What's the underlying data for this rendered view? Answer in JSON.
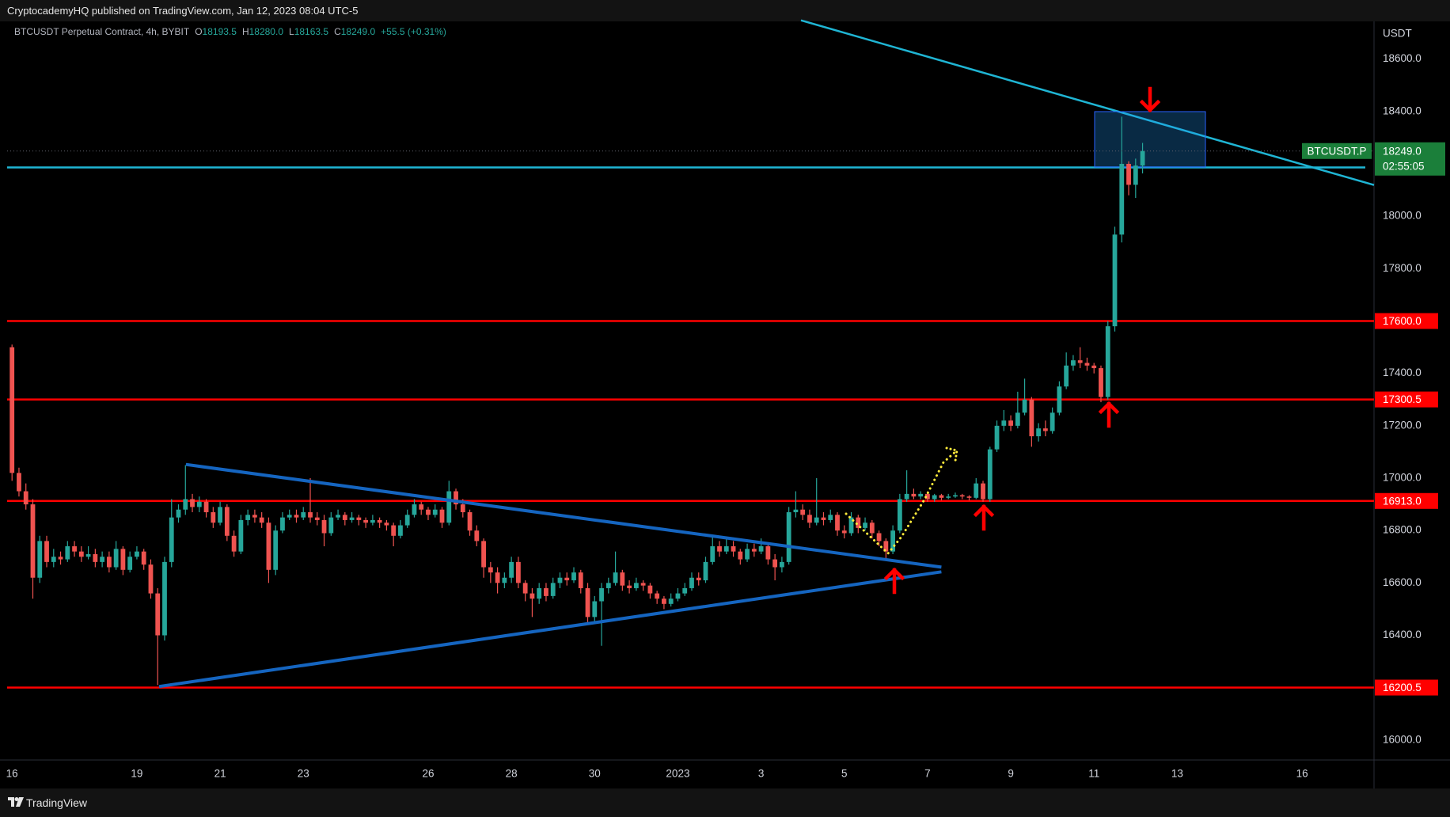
{
  "header": {
    "publisher": "CryptocademyHQ published on TradingView.com, Jan 12, 2023 08:04 UTC-5"
  },
  "chart_data": {
    "type": "candlestick",
    "symbol_title": "BTCUSDT Perpetual Contract, 4h, BYBIT",
    "ohlc_legend": [
      {
        "key": "O",
        "value": "18193.5"
      },
      {
        "key": "H",
        "value": "18280.0"
      },
      {
        "key": "L",
        "value": "18163.5"
      },
      {
        "key": "C",
        "value": "18249.0"
      }
    ],
    "change": "+55.5 (+0.31%)",
    "y_axis_label": "USDT",
    "categories": [
      "16",
      null,
      null,
      null,
      null,
      null,
      null,
      null,
      null,
      null,
      null,
      null,
      null,
      null,
      null,
      null,
      null,
      null,
      "19",
      null,
      null,
      null,
      null,
      null,
      null,
      null,
      null,
      null,
      null,
      null,
      "21",
      null,
      null,
      null,
      null,
      null,
      null,
      null,
      null,
      null,
      null,
      null,
      "23",
      null,
      null,
      null,
      null,
      null,
      null,
      null,
      null,
      null,
      null,
      null,
      null,
      null,
      null,
      null,
      null,
      null,
      "26",
      null,
      null,
      null,
      null,
      null,
      null,
      null,
      null,
      null,
      null,
      null,
      "28",
      null,
      null,
      null,
      null,
      null,
      null,
      null,
      null,
      null,
      null,
      null,
      "30",
      null,
      null,
      null,
      null,
      null,
      null,
      null,
      null,
      null,
      null,
      null,
      "2023",
      null,
      null,
      null,
      null,
      null,
      null,
      null,
      null,
      null,
      null,
      null,
      "3",
      null,
      null,
      null,
      null,
      null,
      null,
      null,
      null,
      null,
      null,
      null,
      "5",
      null,
      null,
      null,
      null,
      null,
      null,
      null,
      null,
      null,
      null,
      null,
      "7",
      null,
      null,
      null,
      null,
      null,
      null,
      null,
      null,
      null,
      null,
      null,
      "9",
      null,
      null,
      null,
      null,
      null,
      null,
      null,
      null,
      null,
      null,
      null,
      "11",
      null,
      null,
      null,
      null,
      null,
      null,
      null,
      null,
      null,
      null,
      null,
      "13",
      null,
      null,
      null,
      null,
      null,
      null,
      null,
      null,
      null,
      null,
      null,
      null,
      null,
      null,
      null,
      null,
      null,
      "16"
    ],
    "values": [
      [
        17500,
        17510,
        16990,
        17020
      ],
      [
        17020,
        17040,
        16930,
        16950
      ],
      [
        16950,
        16980,
        16880,
        16900
      ],
      [
        16900,
        16920,
        16540,
        16620
      ],
      [
        16620,
        16780,
        16600,
        16760
      ],
      [
        16760,
        16780,
        16660,
        16680
      ],
      [
        16680,
        16730,
        16660,
        16700
      ],
      [
        16700,
        16720,
        16670,
        16690
      ],
      [
        16690,
        16760,
        16680,
        16740
      ],
      [
        16740,
        16760,
        16700,
        16720
      ],
      [
        16720,
        16740,
        16680,
        16700
      ],
      [
        16700,
        16740,
        16690,
        16710
      ],
      [
        16710,
        16730,
        16660,
        16680
      ],
      [
        16680,
        16720,
        16660,
        16700
      ],
      [
        16700,
        16720,
        16640,
        16660
      ],
      [
        16660,
        16760,
        16650,
        16730
      ],
      [
        16730,
        16740,
        16630,
        16650
      ],
      [
        16650,
        16720,
        16640,
        16700
      ],
      [
        16700,
        16740,
        16690,
        16720
      ],
      [
        16720,
        16730,
        16650,
        16670
      ],
      [
        16670,
        16690,
        16540,
        16560
      ],
      [
        16560,
        16580,
        16210,
        16400
      ],
      [
        16400,
        16700,
        16380,
        16680
      ],
      [
        16680,
        16920,
        16660,
        16850
      ],
      [
        16850,
        16900,
        16830,
        16880
      ],
      [
        16880,
        17050,
        16860,
        16920
      ],
      [
        16920,
        16940,
        16870,
        16890
      ],
      [
        16890,
        16930,
        16870,
        16910
      ],
      [
        16910,
        16920,
        16850,
        16870
      ],
      [
        16870,
        16890,
        16810,
        16830
      ],
      [
        16830,
        16910,
        16820,
        16890
      ],
      [
        16890,
        16900,
        16760,
        16780
      ],
      [
        16780,
        16800,
        16700,
        16720
      ],
      [
        16720,
        16860,
        16710,
        16840
      ],
      [
        16840,
        16880,
        16820,
        16860
      ],
      [
        16860,
        16880,
        16830,
        16850
      ],
      [
        16850,
        16870,
        16810,
        16830
      ],
      [
        16830,
        16850,
        16600,
        16650
      ],
      [
        16650,
        16820,
        16630,
        16800
      ],
      [
        16800,
        16870,
        16790,
        16850
      ],
      [
        16850,
        16880,
        16840,
        16860
      ],
      [
        16860,
        16880,
        16830,
        16850
      ],
      [
        16850,
        16890,
        16840,
        16870
      ],
      [
        16870,
        17000,
        16830,
        16850
      ],
      [
        16850,
        16870,
        16820,
        16840
      ],
      [
        16840,
        16860,
        16740,
        16790
      ],
      [
        16790,
        16870,
        16780,
        16850
      ],
      [
        16850,
        16880,
        16840,
        16860
      ],
      [
        16860,
        16870,
        16820,
        16840
      ],
      [
        16840,
        16870,
        16830,
        16850
      ],
      [
        16850,
        16860,
        16820,
        16840
      ],
      [
        16840,
        16850,
        16810,
        16830
      ],
      [
        16830,
        16860,
        16820,
        16840
      ],
      [
        16840,
        16850,
        16810,
        16830
      ],
      [
        16830,
        16840,
        16800,
        16820
      ],
      [
        16820,
        16830,
        16740,
        16780
      ],
      [
        16780,
        16840,
        16770,
        16820
      ],
      [
        16820,
        16880,
        16810,
        16860
      ],
      [
        16860,
        16920,
        16850,
        16900
      ],
      [
        16900,
        16910,
        16860,
        16880
      ],
      [
        16880,
        16890,
        16840,
        16860
      ],
      [
        16860,
        16900,
        16850,
        16880
      ],
      [
        16880,
        16890,
        16810,
        16830
      ],
      [
        16830,
        16990,
        16820,
        16950
      ],
      [
        16950,
        16960,
        16880,
        16900
      ],
      [
        16900,
        16920,
        16850,
        16870
      ],
      [
        16870,
        16880,
        16780,
        16800
      ],
      [
        16800,
        16820,
        16740,
        16760
      ],
      [
        16760,
        16770,
        16620,
        16660
      ],
      [
        16660,
        16680,
        16600,
        16640
      ],
      [
        16640,
        16660,
        16560,
        16600
      ],
      [
        16600,
        16640,
        16580,
        16620
      ],
      [
        16620,
        16700,
        16600,
        16680
      ],
      [
        16680,
        16700,
        16580,
        16600
      ],
      [
        16600,
        16610,
        16530,
        16560
      ],
      [
        16560,
        16580,
        16470,
        16540
      ],
      [
        16540,
        16600,
        16520,
        16580
      ],
      [
        16580,
        16600,
        16530,
        16550
      ],
      [
        16550,
        16620,
        16540,
        16600
      ],
      [
        16600,
        16640,
        16580,
        16620
      ],
      [
        16620,
        16640,
        16590,
        16610
      ],
      [
        16610,
        16660,
        16600,
        16640
      ],
      [
        16640,
        16650,
        16560,
        16580
      ],
      [
        16580,
        16600,
        16440,
        16470
      ],
      [
        16470,
        16550,
        16450,
        16530
      ],
      [
        16530,
        16600,
        16360,
        16580
      ],
      [
        16580,
        16620,
        16560,
        16600
      ],
      [
        16600,
        16720,
        16590,
        16640
      ],
      [
        16640,
        16650,
        16570,
        16590
      ],
      [
        16590,
        16610,
        16560,
        16580
      ],
      [
        16580,
        16620,
        16570,
        16600
      ],
      [
        16600,
        16610,
        16570,
        16590
      ],
      [
        16590,
        16600,
        16540,
        16560
      ],
      [
        16560,
        16570,
        16520,
        16540
      ],
      [
        16540,
        16550,
        16500,
        16520
      ],
      [
        16520,
        16560,
        16510,
        16540
      ],
      [
        16540,
        16580,
        16530,
        16560
      ],
      [
        16560,
        16600,
        16550,
        16580
      ],
      [
        16580,
        16640,
        16570,
        16620
      ],
      [
        16620,
        16640,
        16590,
        16610
      ],
      [
        16610,
        16700,
        16600,
        16680
      ],
      [
        16680,
        16780,
        16670,
        16740
      ],
      [
        16740,
        16760,
        16700,
        16720
      ],
      [
        16720,
        16770,
        16710,
        16740
      ],
      [
        16740,
        16760,
        16700,
        16720
      ],
      [
        16720,
        16730,
        16670,
        16690
      ],
      [
        16690,
        16750,
        16680,
        16730
      ],
      [
        16730,
        16750,
        16700,
        16720
      ],
      [
        16720,
        16770,
        16710,
        16740
      ],
      [
        16740,
        16750,
        16670,
        16690
      ],
      [
        16690,
        16710,
        16610,
        16660
      ],
      [
        16660,
        16700,
        16640,
        16680
      ],
      [
        16680,
        16890,
        16670,
        16870
      ],
      [
        16870,
        16950,
        16850,
        16880
      ],
      [
        16880,
        16900,
        16840,
        16860
      ],
      [
        16860,
        16880,
        16810,
        16830
      ],
      [
        16830,
        17000,
        16820,
        16850
      ],
      [
        16850,
        16870,
        16820,
        16840
      ],
      [
        16840,
        16880,
        16830,
        16860
      ],
      [
        16860,
        16870,
        16780,
        16800
      ],
      [
        16800,
        16820,
        16770,
        16790
      ],
      [
        16790,
        16870,
        16780,
        16850
      ],
      [
        16850,
        16860,
        16790,
        16810
      ],
      [
        16810,
        16850,
        16800,
        16830
      ],
      [
        16830,
        16840,
        16770,
        16790
      ],
      [
        16790,
        16800,
        16740,
        16760
      ],
      [
        16760,
        16770,
        16690,
        16720
      ],
      [
        16720,
        16820,
        16710,
        16800
      ],
      [
        16800,
        16940,
        16790,
        16920
      ],
      [
        16920,
        17030,
        16910,
        16940
      ],
      [
        16940,
        16960,
        16920,
        16930
      ],
      [
        16930,
        16950,
        16920,
        16940
      ],
      [
        16940,
        16950,
        16910,
        16920
      ],
      [
        16920,
        16940,
        16910,
        16935
      ],
      [
        16935,
        16940,
        16915,
        16925
      ],
      [
        16925,
        16940,
        16920,
        16930
      ],
      [
        16930,
        16945,
        16925,
        16935
      ],
      [
        16935,
        16940,
        16920,
        16930
      ],
      [
        16930,
        16935,
        16915,
        16925
      ],
      [
        16925,
        17000,
        16920,
        16980
      ],
      [
        16980,
        16990,
        16910,
        16920
      ],
      [
        16920,
        17120,
        16910,
        17110
      ],
      [
        17110,
        17220,
        17100,
        17200
      ],
      [
        17200,
        17260,
        17180,
        17220
      ],
      [
        17220,
        17240,
        17180,
        17200
      ],
      [
        17200,
        17330,
        17190,
        17250
      ],
      [
        17250,
        17380,
        17240,
        17300
      ],
      [
        17300,
        17310,
        17120,
        17160
      ],
      [
        17160,
        17210,
        17140,
        17190
      ],
      [
        17190,
        17220,
        17160,
        17180
      ],
      [
        17180,
        17270,
        17170,
        17250
      ],
      [
        17250,
        17370,
        17240,
        17350
      ],
      [
        17350,
        17480,
        17340,
        17430
      ],
      [
        17430,
        17470,
        17410,
        17450
      ],
      [
        17450,
        17500,
        17420,
        17440
      ],
      [
        17440,
        17460,
        17410,
        17430
      ],
      [
        17430,
        17440,
        17400,
        17420
      ],
      [
        17420,
        17430,
        17290,
        17310
      ],
      [
        17310,
        17600,
        17300,
        17580
      ],
      [
        17580,
        17960,
        17560,
        17930
      ],
      [
        17930,
        18380,
        17900,
        18200
      ],
      [
        18200,
        18210,
        18080,
        18120
      ],
      [
        18120,
        18220,
        18070,
        18193.5
      ],
      [
        18193.5,
        18280,
        18163.5,
        18249
      ],
      null,
      null,
      null,
      null,
      null,
      null,
      null,
      null,
      null,
      null,
      null,
      null,
      null,
      null,
      null,
      null,
      null,
      null,
      null,
      null,
      null,
      null,
      null
    ],
    "up_color": "#26a69a",
    "down_color": "#ef5350",
    "ylim": [
      15924,
      18741
    ],
    "yticks": [
      {
        "value": 16000,
        "label": "16000.0"
      },
      {
        "value": 16400,
        "label": "16400.0"
      },
      {
        "value": 16600,
        "label": "16600.0"
      },
      {
        "value": 16800,
        "label": "16800.0"
      },
      {
        "value": 17000,
        "label": "17000.0"
      },
      {
        "value": 17200,
        "label": "17200.0"
      },
      {
        "value": 17400,
        "label": "17400.0"
      },
      {
        "value": 17800,
        "label": "17800.0"
      },
      {
        "value": 18000,
        "label": "18000.0"
      },
      {
        "value": 18400,
        "label": "18400.0"
      },
      {
        "value": 18600,
        "label": "18600.0"
      }
    ],
    "grid": false,
    "levels": [
      {
        "value": 17600,
        "label": "17600.0",
        "color": "#ff0000"
      },
      {
        "value": 17300.5,
        "color": "#ff0000"
      },
      {
        "value": 16913,
        "label": "16913.0",
        "color": "#ff0000"
      },
      {
        "value": 16200.5,
        "color": "#ff0000"
      }
    ],
    "last_price": {
      "value": 18249,
      "label": "18249.0",
      "countdown": "02:55:05",
      "symbol": "BTCUSDT.P",
      "color": "#1b7f3a"
    }
  },
  "footer": {
    "brand": "TradingView"
  }
}
